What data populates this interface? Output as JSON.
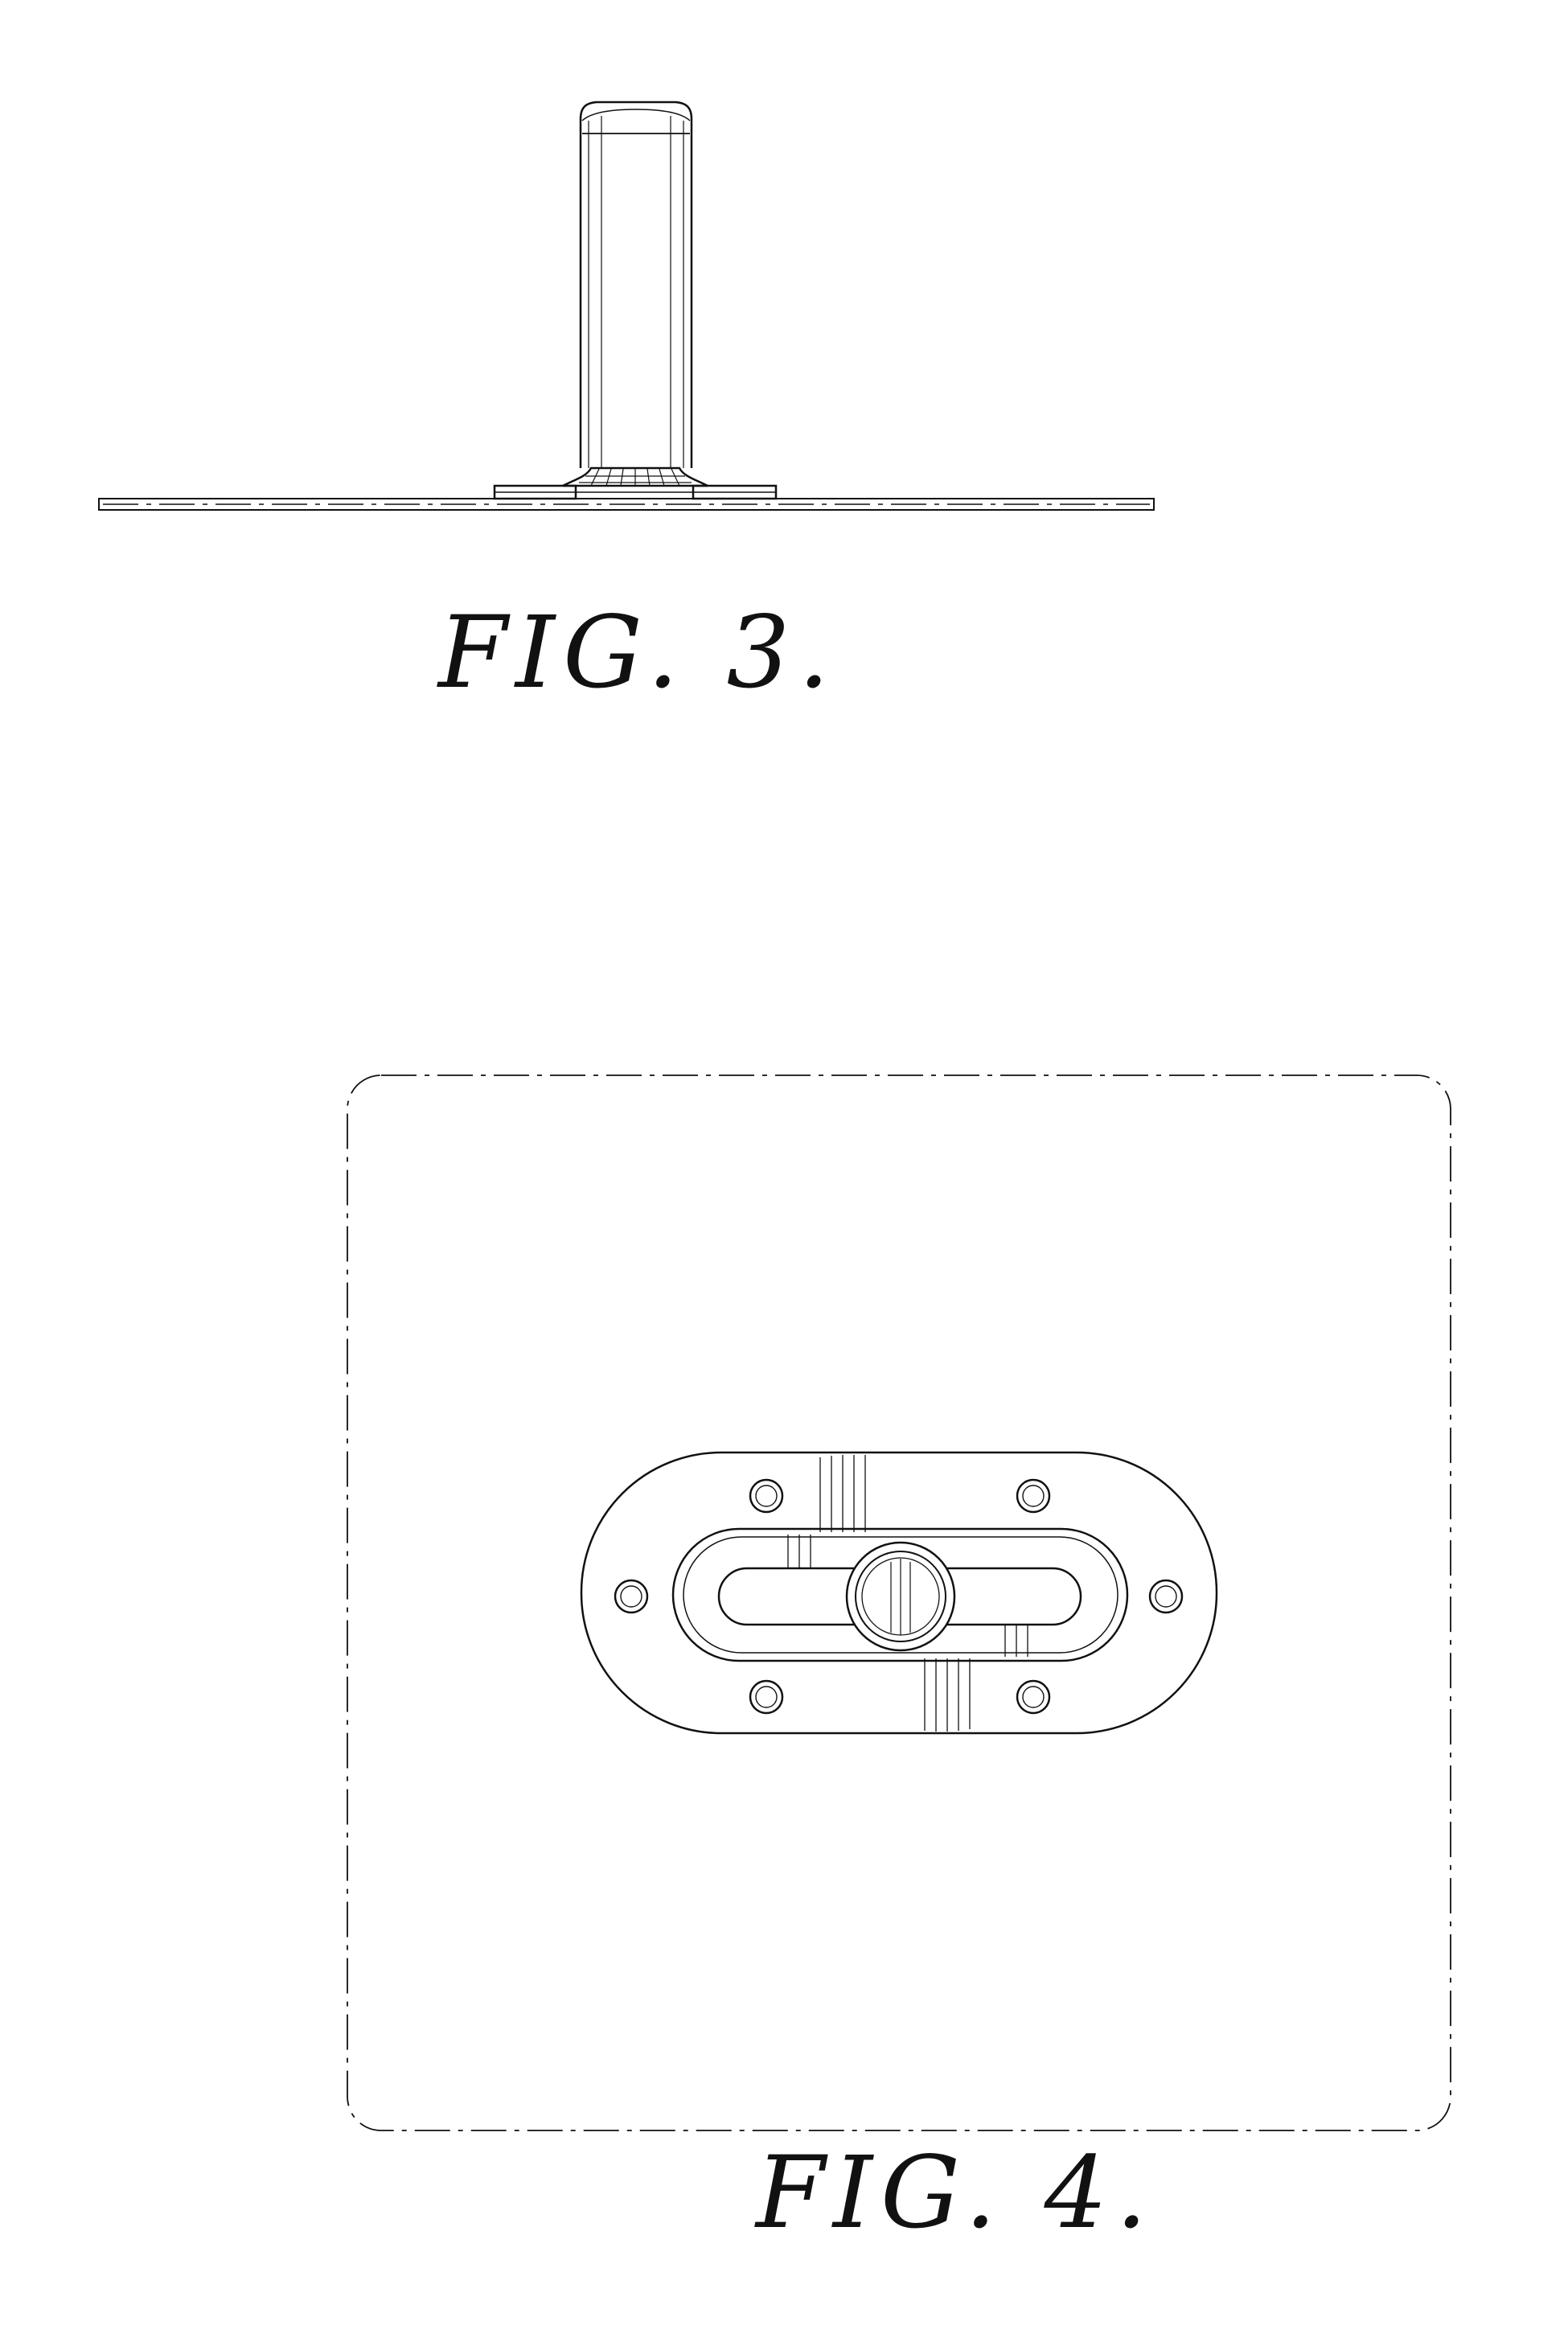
{
  "figures": [
    {
      "label": "FIG. 3."
    },
    {
      "label": "FIG. 4."
    }
  ],
  "colors": {
    "line": "#111111",
    "background": "#ffffff"
  }
}
